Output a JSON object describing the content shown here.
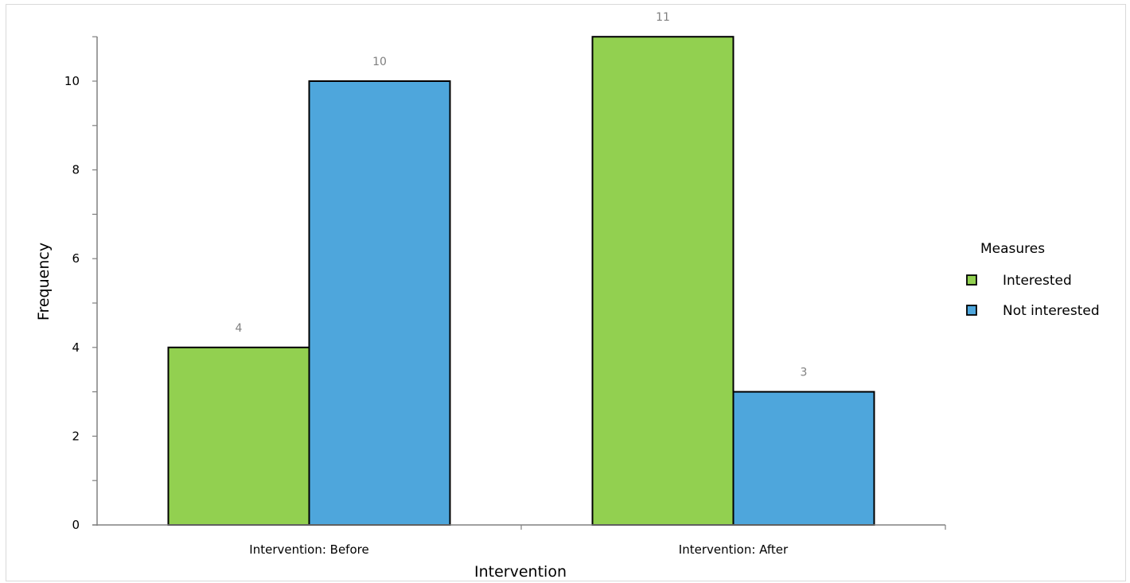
{
  "chart_data": {
    "type": "bar",
    "categories": [
      "Intervention: Before",
      "Intervention: After"
    ],
    "series": [
      {
        "name": "Interested",
        "values": [
          4,
          11
        ],
        "color": "#92d050"
      },
      {
        "name": "Not interested",
        "values": [
          10,
          3
        ],
        "color": "#4ea6dc"
      }
    ],
    "xlabel": "Intervention",
    "ylabel": "Frequency",
    "ylim": [
      0,
      11
    ],
    "yticks": [
      0,
      2,
      4,
      6,
      8,
      10
    ],
    "data_labels": true,
    "grid": false,
    "legend": {
      "title": "Measures",
      "position": "right"
    }
  }
}
